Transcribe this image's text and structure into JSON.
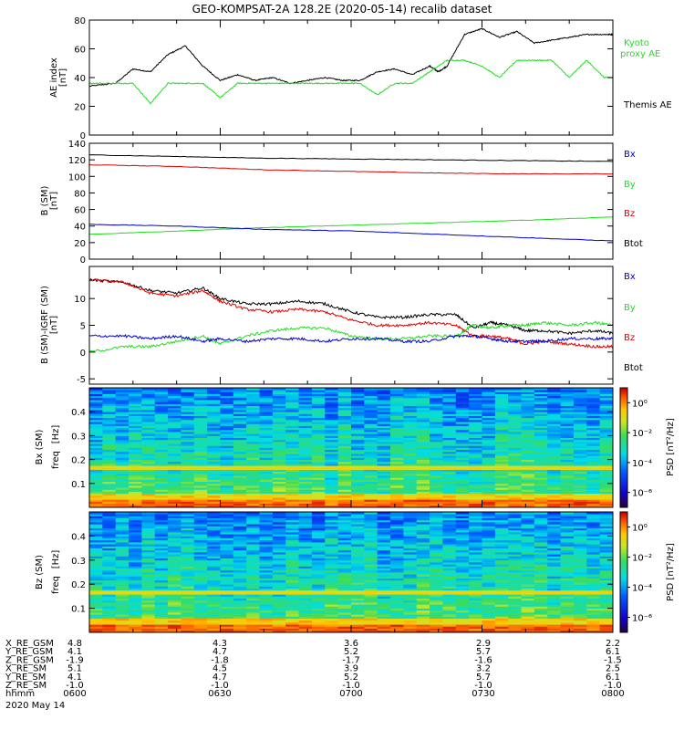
{
  "title": "GEO-KOMPSAT-2A 128.2E (2020-05-14) recalib dataset",
  "footer_date": "2020 May 14",
  "ephemeris": {
    "row_labels": [
      "X_RE_GSM",
      "Y_RE_GSM",
      "Z_RE_GSM",
      "X_RE_SM",
      "Y_RE_SM",
      "Z_RE_SM",
      "hhmm"
    ],
    "columns": [
      [
        "4.8",
        "4.1",
        "-1.9",
        "5.1",
        "4.1",
        "-1.0",
        "0600"
      ],
      [
        "4.3",
        "4.7",
        "-1.8",
        "4.5",
        "4.7",
        "-1.0",
        "0630"
      ],
      [
        "3.6",
        "5.2",
        "-1.7",
        "3.9",
        "5.2",
        "-1.0",
        "0700"
      ],
      [
        "2.9",
        "5.7",
        "-1.6",
        "3.2",
        "5.7",
        "-1.0",
        "0730"
      ],
      [
        "2.2",
        "6.1",
        "-1.5",
        "2.5",
        "6.1",
        "-1.0",
        "0800"
      ]
    ]
  },
  "colors": {
    "black": "#000000",
    "red": "#dd0000",
    "green": "#22dd22",
    "blue": "#0000cc"
  },
  "chart_data": [
    {
      "type": "line",
      "ylabel": "AE index",
      "yunit": "[nT]",
      "ylim": [
        0,
        80
      ],
      "yticks": [
        "0",
        "20",
        "40",
        "60",
        "80"
      ],
      "xlim": [
        0,
        120
      ],
      "series": [
        {
          "name": "Themis AE",
          "color": "black",
          "x": [
            0,
            6,
            10,
            14,
            18,
            22,
            26,
            30,
            34,
            38,
            42,
            46,
            50,
            54,
            58,
            62,
            66,
            70,
            74,
            78,
            80,
            82,
            86,
            90,
            94,
            98,
            102,
            106,
            110,
            114,
            118,
            120
          ],
          "y": [
            34,
            36,
            46,
            44,
            56,
            62,
            48,
            38,
            42,
            38,
            40,
            36,
            38,
            40,
            38,
            38,
            44,
            46,
            42,
            48,
            44,
            48,
            70,
            74,
            68,
            72,
            64,
            66,
            68,
            70,
            70,
            70
          ]
        },
        {
          "name": "Kyoto proxy AE",
          "color": "green",
          "x": [
            0,
            6,
            10,
            14,
            18,
            22,
            26,
            30,
            34,
            38,
            42,
            46,
            50,
            54,
            58,
            62,
            66,
            70,
            74,
            78,
            82,
            86,
            90,
            94,
            98,
            102,
            106,
            110,
            114,
            118,
            120
          ],
          "y": [
            36,
            36,
            36,
            22,
            36,
            36,
            36,
            26,
            36,
            36,
            36,
            36,
            36,
            36,
            36,
            36,
            28,
            36,
            36,
            44,
            52,
            52,
            48,
            40,
            52,
            52,
            52,
            40,
            52,
            40,
            40
          ]
        }
      ],
      "legend": [
        "Kyoto",
        "proxy AE",
        "Themis AE"
      ]
    },
    {
      "type": "line",
      "ylabel": "B (SM)",
      "yunit": "[nT]",
      "ylim": [
        0,
        140
      ],
      "yticks": [
        "0",
        "20",
        "40",
        "60",
        "80",
        "100",
        "120",
        "140"
      ],
      "xlim": [
        0,
        120
      ],
      "series": [
        {
          "name": "Btot",
          "color": "black",
          "x": [
            0,
            20,
            40,
            60,
            80,
            100,
            120
          ],
          "y": [
            126,
            124,
            122,
            121,
            120,
            119,
            118
          ]
        },
        {
          "name": "Bz",
          "color": "red",
          "x": [
            0,
            20,
            40,
            60,
            80,
            100,
            120
          ],
          "y": [
            114,
            112,
            108,
            106,
            104,
            103,
            103
          ]
        },
        {
          "name": "By",
          "color": "green",
          "x": [
            0,
            20,
            40,
            60,
            80,
            100,
            120
          ],
          "y": [
            30,
            34,
            38,
            41,
            44,
            47,
            51
          ]
        },
        {
          "name": "Bx",
          "color": "blue",
          "x": [
            0,
            20,
            40,
            60,
            80,
            100,
            120
          ],
          "y": [
            42,
            40,
            36,
            34,
            30,
            26,
            22
          ]
        }
      ],
      "legend": [
        "Bx",
        "By",
        "Bz",
        "Btot"
      ]
    },
    {
      "type": "line",
      "ylabel": "B (SM)-IGRF (SM)",
      "yunit": "[nT]",
      "ylim": [
        -6,
        16
      ],
      "yticks": [
        "-5",
        "0",
        "5",
        "10"
      ],
      "ytick_values": [
        -5,
        0,
        5,
        10
      ],
      "xlim": [
        0,
        120
      ],
      "series": [
        {
          "name": "Btot",
          "color": "black",
          "x": [
            0,
            8,
            14,
            20,
            26,
            30,
            36,
            42,
            48,
            54,
            60,
            66,
            72,
            78,
            84,
            88,
            92,
            96,
            100,
            104,
            110,
            116,
            120
          ],
          "y": [
            13.5,
            13,
            11.5,
            11,
            12,
            10,
            9,
            9,
            9.5,
            9,
            7.5,
            6.5,
            6.5,
            7,
            7,
            4.5,
            5.5,
            5,
            4,
            4,
            3.5,
            4,
            3.5
          ]
        },
        {
          "name": "Bz",
          "color": "red",
          "x": [
            0,
            8,
            14,
            20,
            26,
            30,
            36,
            42,
            48,
            54,
            60,
            66,
            72,
            78,
            84,
            88,
            92,
            96,
            100,
            104,
            110,
            116,
            120
          ],
          "y": [
            13.5,
            13,
            11,
            10.5,
            11.5,
            9.5,
            8,
            7.5,
            8,
            7.5,
            6,
            5,
            5,
            5.5,
            5,
            3,
            3,
            2.5,
            1.5,
            2,
            1.5,
            1,
            1
          ]
        },
        {
          "name": "By",
          "color": "green",
          "x": [
            0,
            8,
            14,
            20,
            26,
            30,
            36,
            42,
            48,
            54,
            60,
            66,
            72,
            78,
            84,
            88,
            92,
            96,
            100,
            104,
            110,
            116,
            120
          ],
          "y": [
            0,
            1,
            1,
            2,
            3,
            1.5,
            3,
            4,
            4.5,
            4.5,
            3,
            2.5,
            2.5,
            3,
            3,
            5,
            4.5,
            5,
            5,
            5.5,
            5,
            5.5,
            5
          ]
        },
        {
          "name": "Bx",
          "color": "blue",
          "x": [
            0,
            8,
            14,
            20,
            26,
            30,
            36,
            42,
            48,
            54,
            60,
            66,
            72,
            78,
            84,
            88,
            92,
            96,
            100,
            104,
            110,
            116,
            120
          ],
          "y": [
            3,
            3,
            2.5,
            3,
            2,
            2.5,
            2,
            2.5,
            2.5,
            2,
            2.5,
            2.5,
            2,
            2,
            3,
            3,
            2.5,
            2,
            2,
            2,
            2.5,
            2.5,
            2.5
          ]
        }
      ],
      "legend": [
        "Bx",
        "By",
        "Bz",
        "Btot"
      ]
    },
    {
      "type": "heatmap",
      "ylabel": "Bx (SM)",
      "ylabel2": "freq",
      "yunit": "[Hz]",
      "ylim": [
        0,
        0.5
      ],
      "yticks": [
        "0.1",
        "0.2",
        "0.3",
        "0.4"
      ],
      "colorbar_label": "PSD [nT²/Hz]",
      "colorbar_ticks": [
        "10⁰",
        "10⁻²",
        "10⁻⁴",
        "10⁻⁶"
      ],
      "colorbar_range_log10": [
        -7,
        1
      ],
      "low_freq_power": "high",
      "note_band_hz": 0.165
    },
    {
      "type": "heatmap",
      "ylabel": "Bz (SM)",
      "ylabel2": "freq",
      "yunit": "[Hz]",
      "ylim": [
        0,
        0.5
      ],
      "yticks": [
        "0.1",
        "0.2",
        "0.3",
        "0.4"
      ],
      "colorbar_label": "PSD [nT²/Hz]",
      "colorbar_ticks": [
        "10⁰",
        "10⁻²",
        "10⁻⁴",
        "10⁻⁶"
      ],
      "colorbar_range_log10": [
        -7,
        1
      ],
      "low_freq_power": "high",
      "note_band_hz": 0.165
    }
  ]
}
